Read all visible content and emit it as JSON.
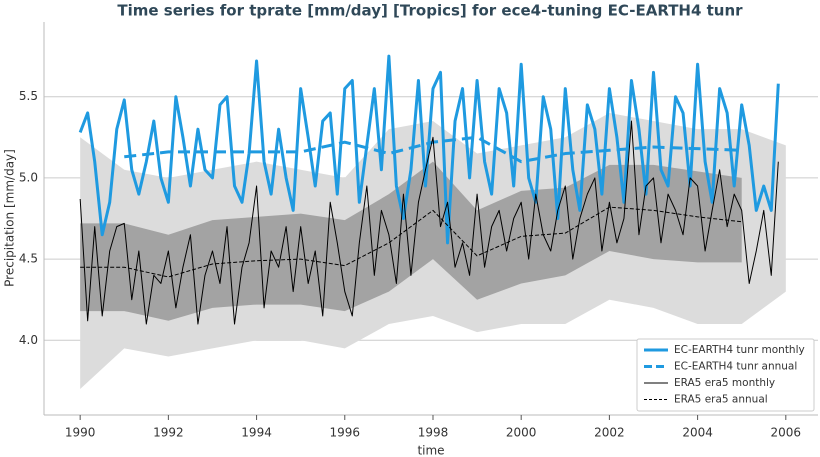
{
  "chart_data": {
    "type": "line",
    "title": "Time series for tprate [mm/day] [Tropics] for ece4-tuning EC-EARTH4 tunr",
    "x_label": "time",
    "y_label": "Precipitation [mm/day]",
    "xlim": [
      1989.18,
      2006.73
    ],
    "ylim": [
      3.54,
      5.96
    ],
    "xticks": [
      1990,
      1992,
      1994,
      1996,
      1998,
      2000,
      2002,
      2004,
      2006
    ],
    "yticks": [
      {
        "value": 4,
        "label": "4.0"
      },
      4.5,
      {
        "value": 5,
        "label": "5.0"
      },
      5.5
    ],
    "grid": true,
    "legend": "lower right",
    "x": [
      1990,
      1990.17,
      1990.33,
      1990.5,
      1990.67,
      1990.83,
      1991,
      1991.17,
      1991.33,
      1991.5,
      1991.67,
      1991.83,
      1992,
      1992.17,
      1992.33,
      1992.5,
      1992.67,
      1992.83,
      1993,
      1993.17,
      1993.33,
      1993.5,
      1993.67,
      1993.83,
      1994,
      1994.17,
      1994.33,
      1994.5,
      1994.67,
      1994.83,
      1995,
      1995.17,
      1995.33,
      1995.5,
      1995.67,
      1995.83,
      1996,
      1996.17,
      1996.33,
      1996.5,
      1996.67,
      1996.83,
      1997,
      1997.17,
      1997.33,
      1997.5,
      1997.67,
      1997.83,
      1998,
      1998.17,
      1998.33,
      1998.5,
      1998.67,
      1998.83,
      1999,
      1999.17,
      1999.33,
      1999.5,
      1999.67,
      1999.83,
      2000,
      2000.17,
      2000.33,
      2000.5,
      2000.67,
      2000.83,
      2001,
      2001.17,
      2001.33,
      2001.5,
      2001.67,
      2001.83,
      2002,
      2002.17,
      2002.33,
      2002.5,
      2002.67,
      2002.83,
      2003,
      2003.17,
      2003.33,
      2003.5,
      2003.67,
      2003.83,
      2004,
      2004.17,
      2004.33,
      2004.5,
      2004.67,
      2004.83,
      2005,
      2005.17,
      2005.33,
      2005.5,
      2005.67,
      2005.83
    ],
    "bands": [
      {
        "color": "#dcdcdc",
        "x": [
          1990,
          1991,
          1992,
          1993,
          1994,
          1995,
          1996,
          1997,
          1998,
          1999,
          2000,
          2001,
          2002,
          2003,
          2004,
          2005,
          2006
        ],
        "lower": [
          3.7,
          3.95,
          3.9,
          3.95,
          4.0,
          4.0,
          3.95,
          4.1,
          4.15,
          4.05,
          4.1,
          4.1,
          4.25,
          4.2,
          4.1,
          4.1,
          4.3
        ],
        "upper": [
          5.25,
          5.05,
          5.0,
          5.05,
          5.1,
          5.05,
          5.0,
          5.3,
          5.35,
          5.15,
          5.2,
          5.25,
          5.4,
          5.35,
          5.3,
          5.3,
          5.2
        ]
      },
      {
        "color": "#a3a3a3",
        "x": [
          1990,
          1991,
          1992,
          1993,
          1994,
          1995,
          1996,
          1997,
          1998,
          1999,
          2000,
          2001,
          2002,
          2003,
          2004,
          2005
        ],
        "lower": [
          4.18,
          4.18,
          4.12,
          4.2,
          4.22,
          4.22,
          4.18,
          4.3,
          4.5,
          4.25,
          4.35,
          4.4,
          4.55,
          4.5,
          4.48,
          4.48
        ],
        "upper": [
          4.72,
          4.72,
          4.65,
          4.74,
          4.76,
          4.78,
          4.74,
          4.9,
          5.1,
          4.8,
          4.92,
          4.94,
          5.08,
          5.08,
          5.04,
          5.0
        ]
      }
    ],
    "series": [
      {
        "name": "EC-EARTH4 tunr monthly",
        "color": "#1f9ae0",
        "linewidth": 3,
        "linestyle": "solid",
        "values": [
          5.28,
          5.4,
          5.1,
          4.65,
          4.85,
          5.3,
          5.48,
          5.05,
          4.9,
          5.1,
          5.35,
          5.0,
          4.85,
          5.5,
          5.25,
          4.95,
          5.3,
          5.05,
          5.0,
          5.45,
          5.5,
          4.95,
          4.85,
          5.15,
          5.72,
          5.1,
          4.9,
          5.3,
          5.0,
          4.8,
          5.55,
          5.25,
          4.95,
          5.35,
          5.4,
          4.9,
          5.55,
          5.6,
          4.85,
          5.2,
          5.55,
          5.05,
          5.75,
          4.95,
          4.75,
          5.05,
          5.6,
          4.95,
          5.55,
          5.65,
          4.6,
          5.35,
          5.55,
          5.0,
          5.6,
          5.1,
          4.9,
          5.55,
          5.4,
          4.95,
          5.7,
          5.0,
          4.85,
          5.5,
          5.3,
          4.75,
          5.55,
          5.05,
          4.8,
          5.45,
          5.3,
          4.9,
          5.55,
          5.25,
          4.85,
          5.6,
          5.3,
          4.9,
          5.65,
          5.05,
          4.95,
          5.5,
          5.4,
          4.95,
          5.7,
          5.1,
          4.85,
          5.55,
          5.4,
          4.95,
          5.45,
          5.2,
          4.8,
          4.95,
          4.8,
          5.58
        ]
      },
      {
        "name": "EC-EARTH4 tunr annual",
        "color": "#1f9ae0",
        "linewidth": 3,
        "linestyle": "dashed",
        "x": [
          1991,
          1992,
          1993,
          1994,
          1995,
          1996,
          1997,
          1998,
          1999,
          2000,
          2001,
          2002,
          2003,
          2004,
          2005
        ],
        "values": [
          5.13,
          5.16,
          5.16,
          5.16,
          5.16,
          5.22,
          5.15,
          5.22,
          5.25,
          5.1,
          5.15,
          5.17,
          5.19,
          5.18,
          5.17
        ]
      },
      {
        "name": "ERA5 era5 monthly",
        "color": "#000000",
        "linewidth": 1,
        "linestyle": "solid",
        "values": [
          4.87,
          4.12,
          4.7,
          4.15,
          4.55,
          4.7,
          4.72,
          4.25,
          4.55,
          4.1,
          4.4,
          4.35,
          4.55,
          4.2,
          4.45,
          4.65,
          4.1,
          4.4,
          4.55,
          4.35,
          4.7,
          4.1,
          4.45,
          4.6,
          4.95,
          4.2,
          4.55,
          4.45,
          4.7,
          4.3,
          4.7,
          4.35,
          4.55,
          4.15,
          4.85,
          4.6,
          4.3,
          4.15,
          4.6,
          4.95,
          4.4,
          4.8,
          4.65,
          4.35,
          4.9,
          4.4,
          4.85,
          5.05,
          5.25,
          4.7,
          4.85,
          4.45,
          4.6,
          4.4,
          4.9,
          4.45,
          4.7,
          4.8,
          4.55,
          4.75,
          4.85,
          4.5,
          4.9,
          4.65,
          4.55,
          4.8,
          4.95,
          4.5,
          4.75,
          4.9,
          5.0,
          4.55,
          4.85,
          4.6,
          4.75,
          5.35,
          4.65,
          4.95,
          5.0,
          4.6,
          4.9,
          4.8,
          4.65,
          5.0,
          4.95,
          4.55,
          4.8,
          5.05,
          4.7,
          4.9,
          4.8,
          4.35,
          4.55,
          4.8,
          4.4,
          5.1
        ]
      },
      {
        "name": "ERA5 era5 annual",
        "color": "#000000",
        "linewidth": 1,
        "linestyle": "dashed",
        "x": [
          1990,
          1991,
          1992,
          1993,
          1994,
          1995,
          1996,
          1997,
          1998,
          1999,
          2000,
          2001,
          2002,
          2003,
          2004,
          2005
        ],
        "values": [
          4.45,
          4.45,
          4.39,
          4.47,
          4.49,
          4.5,
          4.46,
          4.6,
          4.8,
          4.52,
          4.64,
          4.66,
          4.82,
          4.8,
          4.76,
          4.73
        ]
      }
    ]
  }
}
